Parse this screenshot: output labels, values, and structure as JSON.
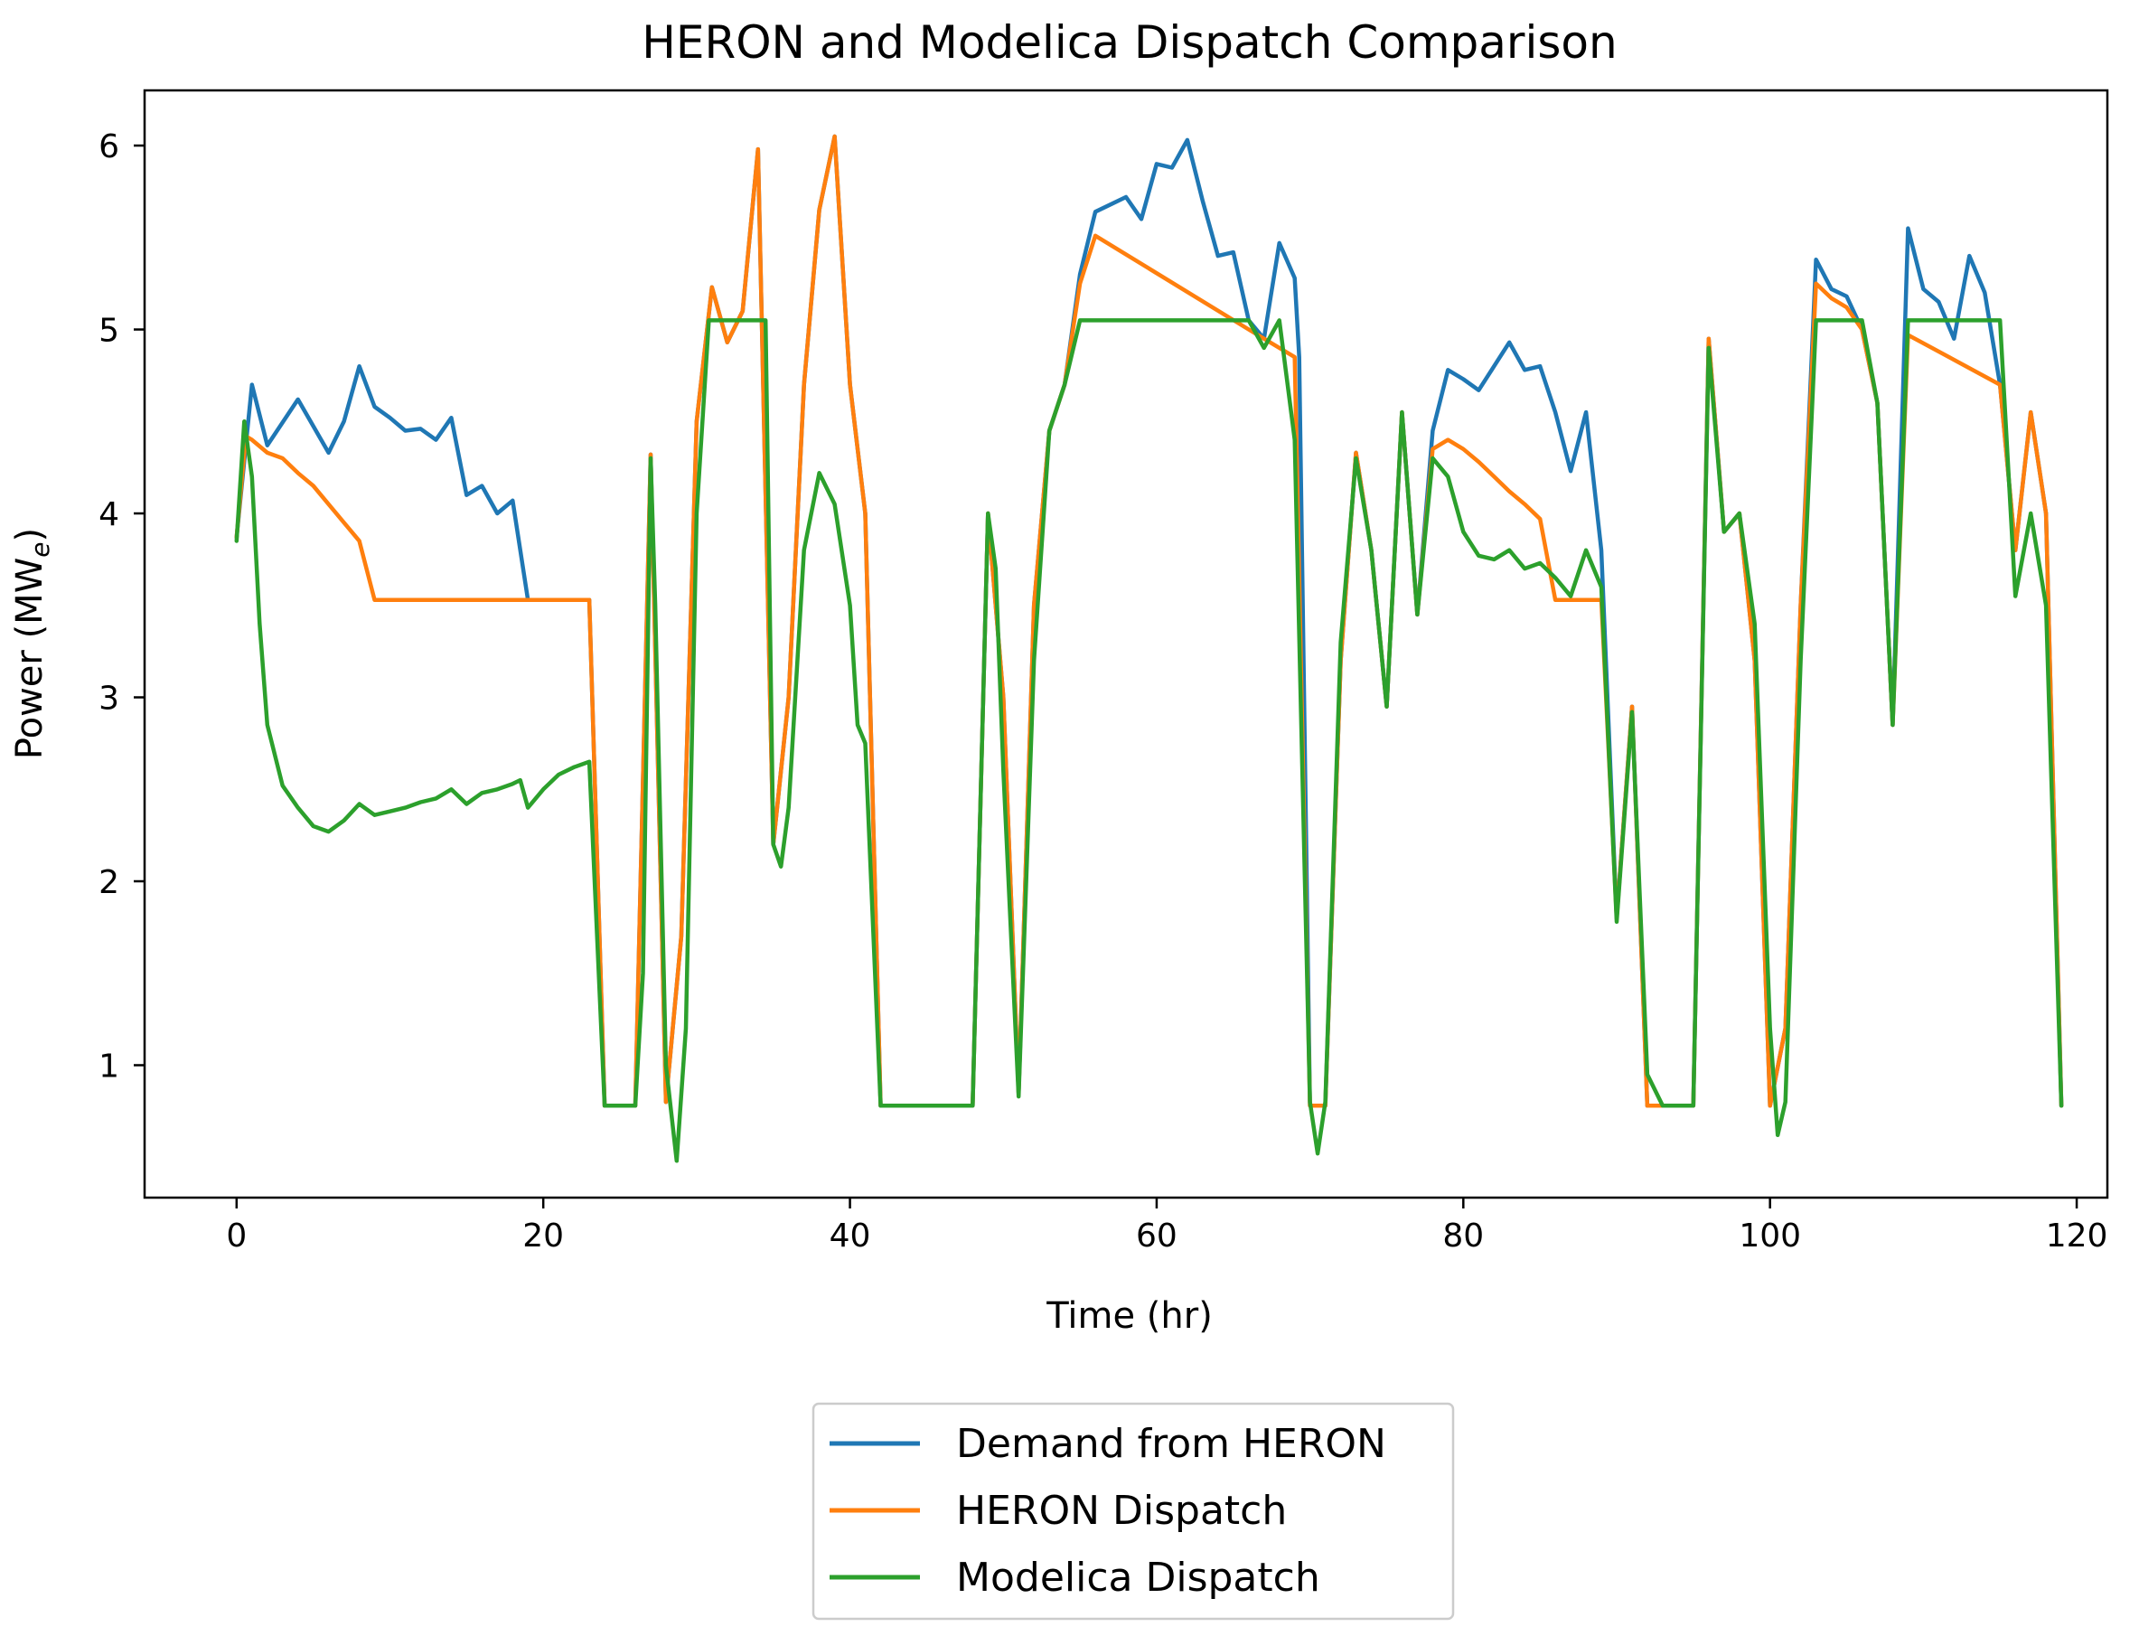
{
  "chart_data": {
    "type": "line",
    "title": "HERON and Modelica Dispatch Comparison",
    "xlabel": "Time (hr)",
    "ylabel_main": "Power (MW",
    "ylabel_sub": "e",
    "ylabel_close": ")",
    "xlim": [
      -6,
      122
    ],
    "ylim": [
      0.28,
      6.3
    ],
    "xticks": [
      0,
      20,
      40,
      60,
      80,
      100,
      120
    ],
    "yticks": [
      1,
      2,
      3,
      4,
      5,
      6
    ],
    "legend_position": "below",
    "series": [
      {
        "name": "Demand from HERON",
        "color": "#1f77b4",
        "points": [
          [
            0,
            3.87
          ],
          [
            1,
            4.7
          ],
          [
            2,
            4.37
          ],
          [
            4,
            4.62
          ],
          [
            6,
            4.33
          ],
          [
            7,
            4.5
          ],
          [
            8,
            4.8
          ],
          [
            9,
            4.58
          ],
          [
            10,
            4.52
          ],
          [
            11,
            4.45
          ],
          [
            12,
            4.46
          ],
          [
            13,
            4.4
          ],
          [
            14,
            4.52
          ],
          [
            15,
            4.1
          ],
          [
            16,
            4.15
          ],
          [
            17,
            4.0
          ],
          [
            18,
            4.07
          ],
          [
            19,
            3.53
          ],
          [
            23,
            3.53
          ],
          [
            24,
            0.78
          ],
          [
            26,
            0.78
          ],
          [
            27,
            4.32
          ],
          [
            28,
            0.8
          ],
          [
            29,
            1.7
          ],
          [
            30,
            4.5
          ],
          [
            31,
            5.23
          ],
          [
            32,
            4.93
          ],
          [
            33,
            5.1
          ],
          [
            34,
            5.98
          ],
          [
            35,
            2.2
          ],
          [
            36,
            3.0
          ],
          [
            37,
            4.7
          ],
          [
            38,
            5.65
          ],
          [
            39,
            6.05
          ],
          [
            40,
            4.7
          ],
          [
            41,
            4.0
          ],
          [
            42,
            0.78
          ],
          [
            48,
            0.78
          ],
          [
            49,
            4.0
          ],
          [
            50,
            3.0
          ],
          [
            51,
            0.85
          ],
          [
            52,
            3.5
          ],
          [
            53,
            4.45
          ],
          [
            54,
            4.7
          ],
          [
            55,
            5.3
          ],
          [
            56,
            5.64
          ],
          [
            57,
            5.68
          ],
          [
            58,
            5.72
          ],
          [
            59,
            5.6
          ],
          [
            60,
            5.9
          ],
          [
            61,
            5.88
          ],
          [
            62,
            6.03
          ],
          [
            63,
            5.7
          ],
          [
            64,
            5.4
          ],
          [
            65,
            5.42
          ],
          [
            66,
            5.05
          ],
          [
            67,
            4.95
          ],
          [
            68,
            5.47
          ],
          [
            69,
            5.28
          ],
          [
            69.3,
            4.85
          ],
          [
            70,
            0.78
          ],
          [
            71,
            0.78
          ],
          [
            72,
            3.2
          ],
          [
            73,
            4.33
          ],
          [
            74,
            3.8
          ],
          [
            75,
            2.95
          ],
          [
            76,
            4.55
          ],
          [
            77,
            3.45
          ],
          [
            78,
            4.45
          ],
          [
            79,
            4.78
          ],
          [
            80,
            4.73
          ],
          [
            81,
            4.67
          ],
          [
            82,
            4.8
          ],
          [
            83,
            4.93
          ],
          [
            84,
            4.78
          ],
          [
            85,
            4.8
          ],
          [
            86,
            4.55
          ],
          [
            87,
            4.23
          ],
          [
            88,
            4.55
          ],
          [
            89,
            3.8
          ],
          [
            90,
            1.8
          ],
          [
            91,
            2.95
          ],
          [
            92,
            0.78
          ],
          [
            95,
            0.78
          ],
          [
            96,
            4.95
          ],
          [
            97,
            3.9
          ],
          [
            98,
            4.0
          ],
          [
            99,
            3.2
          ],
          [
            100,
            0.78
          ],
          [
            101,
            1.2
          ],
          [
            102,
            3.5
          ],
          [
            103,
            5.38
          ],
          [
            104,
            5.22
          ],
          [
            105,
            5.18
          ],
          [
            106,
            5.0
          ],
          [
            107,
            4.6
          ],
          [
            108,
            2.85
          ],
          [
            109,
            5.55
          ],
          [
            110,
            5.22
          ],
          [
            111,
            5.15
          ],
          [
            112,
            4.95
          ],
          [
            113,
            5.4
          ],
          [
            114,
            5.2
          ],
          [
            115,
            4.7
          ],
          [
            116,
            3.8
          ],
          [
            117,
            4.55
          ],
          [
            118,
            4.0
          ],
          [
            119,
            0.78
          ]
        ]
      },
      {
        "name": "HERON Dispatch",
        "color": "#ff7f0e",
        "points": [
          [
            0,
            3.87
          ],
          [
            0.6,
            4.42
          ],
          [
            1,
            4.4
          ],
          [
            2,
            4.33
          ],
          [
            3,
            4.3
          ],
          [
            4,
            4.22
          ],
          [
            5,
            4.15
          ],
          [
            6,
            4.05
          ],
          [
            7,
            3.95
          ],
          [
            8,
            3.85
          ],
          [
            9,
            3.53
          ],
          [
            23,
            3.53
          ],
          [
            24,
            0.78
          ],
          [
            26,
            0.78
          ],
          [
            27,
            4.32
          ],
          [
            28,
            0.8
          ],
          [
            29,
            1.7
          ],
          [
            30,
            4.5
          ],
          [
            31,
            5.23
          ],
          [
            32,
            4.93
          ],
          [
            33,
            5.1
          ],
          [
            34,
            5.98
          ],
          [
            35,
            2.2
          ],
          [
            36,
            3.0
          ],
          [
            37,
            4.7
          ],
          [
            38,
            5.65
          ],
          [
            39,
            6.05
          ],
          [
            40,
            4.7
          ],
          [
            41,
            4.0
          ],
          [
            42,
            0.78
          ],
          [
            48,
            0.78
          ],
          [
            49,
            4.0
          ],
          [
            50,
            3.0
          ],
          [
            51,
            0.85
          ],
          [
            52,
            3.5
          ],
          [
            53,
            4.45
          ],
          [
            54,
            4.7
          ],
          [
            55,
            5.25
          ],
          [
            56,
            5.51
          ],
          [
            66,
            5.0
          ],
          [
            67,
            4.95
          ],
          [
            69,
            4.85
          ],
          [
            70,
            0.78
          ],
          [
            71,
            0.78
          ],
          [
            72,
            3.2
          ],
          [
            73,
            4.33
          ],
          [
            74,
            3.8
          ],
          [
            75,
            2.95
          ],
          [
            76,
            4.55
          ],
          [
            77,
            3.45
          ],
          [
            78,
            4.35
          ],
          [
            79,
            4.4
          ],
          [
            80,
            4.35
          ],
          [
            81,
            4.28
          ],
          [
            82,
            4.2
          ],
          [
            83,
            4.12
          ],
          [
            84,
            4.05
          ],
          [
            85,
            3.97
          ],
          [
            86,
            3.53
          ],
          [
            88,
            3.53
          ],
          [
            89,
            3.53
          ],
          [
            90,
            1.8
          ],
          [
            91,
            2.95
          ],
          [
            92,
            0.78
          ],
          [
            95,
            0.78
          ],
          [
            96,
            4.95
          ],
          [
            97,
            3.9
          ],
          [
            98,
            4.0
          ],
          [
            99,
            3.2
          ],
          [
            100,
            0.78
          ],
          [
            101,
            1.2
          ],
          [
            102,
            3.5
          ],
          [
            103,
            5.25
          ],
          [
            104,
            5.17
          ],
          [
            105,
            5.12
          ],
          [
            106,
            5.0
          ],
          [
            107,
            4.6
          ],
          [
            108,
            2.85
          ],
          [
            109,
            4.97
          ],
          [
            115,
            4.7
          ],
          [
            116,
            3.8
          ],
          [
            117,
            4.55
          ],
          [
            118,
            4.0
          ],
          [
            119,
            0.78
          ]
        ]
      },
      {
        "name": "Modelica Dispatch",
        "color": "#2ca02c",
        "points": [
          [
            0,
            3.85
          ],
          [
            0.5,
            4.5
          ],
          [
            1,
            4.2
          ],
          [
            1.5,
            3.4
          ],
          [
            2,
            2.85
          ],
          [
            3,
            2.52
          ],
          [
            4,
            2.4
          ],
          [
            5,
            2.3
          ],
          [
            6,
            2.27
          ],
          [
            7,
            2.33
          ],
          [
            8,
            2.42
          ],
          [
            9,
            2.36
          ],
          [
            10,
            2.38
          ],
          [
            11,
            2.4
          ],
          [
            12,
            2.43
          ],
          [
            13,
            2.45
          ],
          [
            14,
            2.5
          ],
          [
            15,
            2.42
          ],
          [
            16,
            2.48
          ],
          [
            17,
            2.5
          ],
          [
            18,
            2.53
          ],
          [
            18.5,
            2.55
          ],
          [
            19,
            2.4
          ],
          [
            20,
            2.5
          ],
          [
            21,
            2.58
          ],
          [
            22,
            2.62
          ],
          [
            23,
            2.65
          ],
          [
            24,
            0.78
          ],
          [
            26,
            0.78
          ],
          [
            26.5,
            1.5
          ],
          [
            27,
            4.3
          ],
          [
            27.3,
            3.5
          ],
          [
            28,
            1.0
          ],
          [
            28.7,
            0.48
          ],
          [
            29.3,
            1.2
          ],
          [
            30,
            4.0
          ],
          [
            30.8,
            5.05
          ],
          [
            34.5,
            5.05
          ],
          [
            35,
            2.2
          ],
          [
            35.5,
            2.08
          ],
          [
            36,
            2.4
          ],
          [
            37,
            3.8
          ],
          [
            38,
            4.22
          ],
          [
            39,
            4.05
          ],
          [
            40,
            3.5
          ],
          [
            40.5,
            2.85
          ],
          [
            41,
            2.75
          ],
          [
            42,
            0.78
          ],
          [
            48,
            0.78
          ],
          [
            49,
            4.0
          ],
          [
            49.5,
            3.7
          ],
          [
            50,
            2.6
          ],
          [
            51,
            0.83
          ],
          [
            52,
            3.2
          ],
          [
            53,
            4.45
          ],
          [
            54,
            4.7
          ],
          [
            55,
            5.05
          ],
          [
            66,
            5.05
          ],
          [
            67,
            4.9
          ],
          [
            68,
            5.05
          ],
          [
            69,
            4.4
          ],
          [
            70,
            0.8
          ],
          [
            70.5,
            0.52
          ],
          [
            71,
            0.8
          ],
          [
            72,
            3.3
          ],
          [
            73,
            4.3
          ],
          [
            74,
            3.8
          ],
          [
            75,
            2.95
          ],
          [
            76,
            4.55
          ],
          [
            77,
            3.45
          ],
          [
            78,
            4.3
          ],
          [
            79,
            4.2
          ],
          [
            80,
            3.9
          ],
          [
            81,
            3.77
          ],
          [
            82,
            3.75
          ],
          [
            83,
            3.8
          ],
          [
            84,
            3.7
          ],
          [
            85,
            3.73
          ],
          [
            86,
            3.65
          ],
          [
            87,
            3.55
          ],
          [
            88,
            3.8
          ],
          [
            89,
            3.6
          ],
          [
            90,
            1.78
          ],
          [
            91,
            2.92
          ],
          [
            92,
            0.95
          ],
          [
            93,
            0.78
          ],
          [
            95,
            0.78
          ],
          [
            96,
            4.9
          ],
          [
            97,
            3.9
          ],
          [
            98,
            4.0
          ],
          [
            99,
            3.4
          ],
          [
            100,
            1.2
          ],
          [
            100.5,
            0.62
          ],
          [
            101,
            0.8
          ],
          [
            102,
            3.2
          ],
          [
            103,
            5.05
          ],
          [
            106,
            5.05
          ],
          [
            107,
            4.6
          ],
          [
            108,
            2.85
          ],
          [
            109,
            5.05
          ],
          [
            115,
            5.05
          ],
          [
            116,
            3.55
          ],
          [
            117,
            4.0
          ],
          [
            118,
            3.5
          ],
          [
            119,
            0.78
          ]
        ]
      }
    ]
  }
}
